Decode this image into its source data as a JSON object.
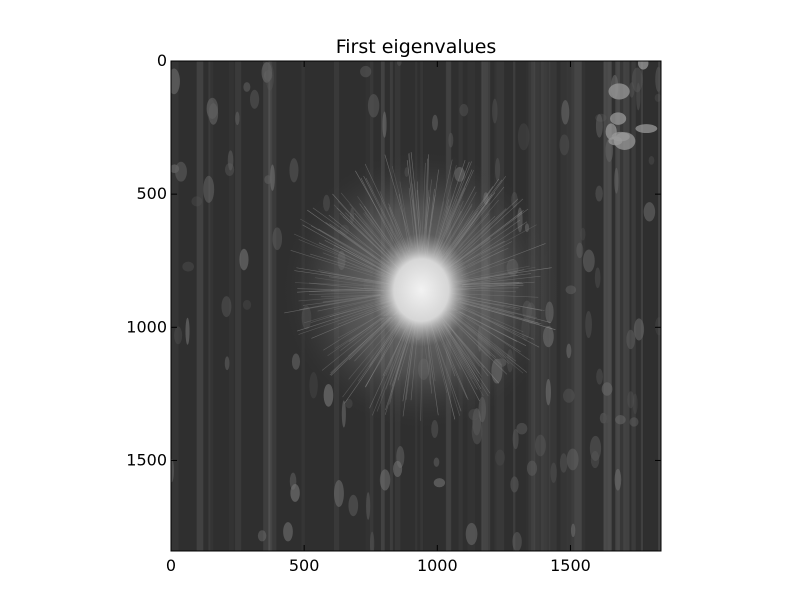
{
  "chart_data": {
    "type": "heatmap",
    "title": "First eigenvalues",
    "xlabel": "",
    "ylabel": "",
    "xlim": [
      0,
      1840
    ],
    "ylim": [
      1840,
      0
    ],
    "y_inverted": true,
    "colormap": "gray",
    "grid": false,
    "xticks": [
      0,
      500,
      1000,
      1500
    ],
    "yticks": [
      0,
      500,
      1000,
      1500
    ],
    "xtick_labels": [
      "0",
      "500",
      "1000",
      "1500"
    ],
    "ytick_labels": [
      "0",
      "500",
      "1000",
      "1500"
    ],
    "image_features": {
      "background_level": "dark gray with vertical streaks",
      "bright_blob_center": [
        940,
        860
      ],
      "bright_core_radius": 170,
      "halo_radius": 520,
      "corner_spots_region": [
        1540,
        0,
        1840,
        320
      ]
    }
  }
}
